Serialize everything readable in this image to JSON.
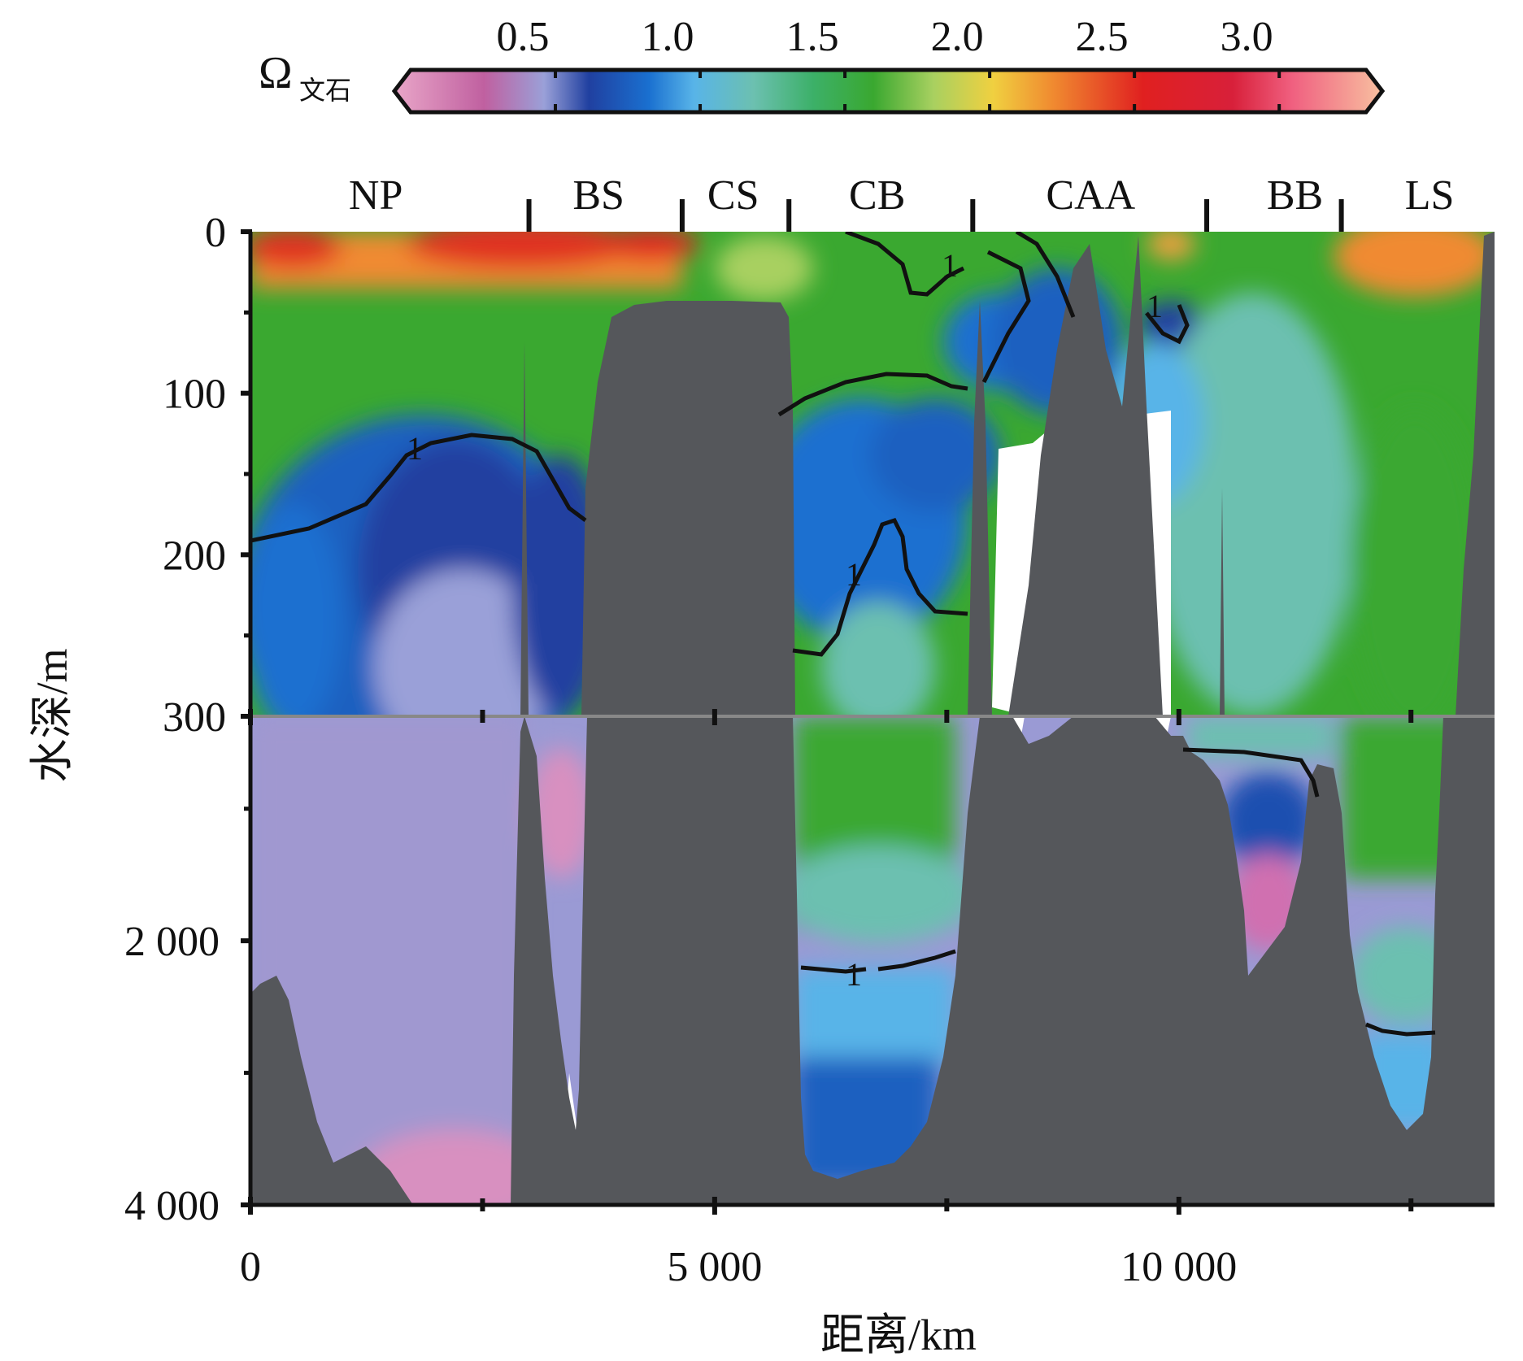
{
  "colorbar": {
    "label_main": "Ω",
    "label_sub": "文石",
    "ticks": [
      0.5,
      1.0,
      1.5,
      2.0,
      2.5,
      3.0
    ],
    "tick_labels": [
      "0.5",
      "1.0",
      "1.5",
      "2.0",
      "2.5",
      "3.0"
    ],
    "range": [
      0.0,
      3.3
    ],
    "stops": [
      {
        "v": 0.0,
        "color": "#e9a6c8"
      },
      {
        "v": 0.3,
        "color": "#c060a0"
      },
      {
        "v": 0.5,
        "color": "#9aa0d8"
      },
      {
        "v": 0.65,
        "color": "#2040a0"
      },
      {
        "v": 0.85,
        "color": "#1a70d0"
      },
      {
        "v": 1.0,
        "color": "#58b4e8"
      },
      {
        "v": 1.2,
        "color": "#6cc0b0"
      },
      {
        "v": 1.4,
        "color": "#3cb068"
      },
      {
        "v": 1.6,
        "color": "#3aa830"
      },
      {
        "v": 1.8,
        "color": "#a8d060"
      },
      {
        "v": 2.0,
        "color": "#f0d040"
      },
      {
        "v": 2.2,
        "color": "#f08a30"
      },
      {
        "v": 2.5,
        "color": "#e02020"
      },
      {
        "v": 2.8,
        "color": "#d8203a"
      },
      {
        "v": 3.0,
        "color": "#f06080"
      },
      {
        "v": 3.3,
        "color": "#f8c0a0"
      }
    ]
  },
  "chart_data": {
    "type": "heatmap",
    "xlabel": "距离/km",
    "ylabel": "水深/m",
    "xlim": [
      0,
      13400
    ],
    "x_ticks": [
      0,
      5000,
      10000
    ],
    "x_tick_labels": [
      "0",
      "5 000",
      "10 000"
    ],
    "y_ticks_upper": [
      0,
      100,
      200,
      300
    ],
    "y_tick_labels_upper": [
      "0",
      "100",
      "200",
      "300"
    ],
    "y_ticks_lower": [
      2000,
      4000
    ],
    "y_tick_labels_lower": [
      "2 000",
      "4 000"
    ],
    "ylim_upper": [
      0,
      300
    ],
    "ylim_lower": [
      300,
      4000
    ],
    "regions": [
      {
        "name": "NP",
        "center_km": 1350
      },
      {
        "name": "BS",
        "center_km": 3750
      },
      {
        "name": "CS",
        "center_km": 5200
      },
      {
        "name": "CB",
        "center_km": 6750
      },
      {
        "name": "CAA",
        "center_km": 9050
      },
      {
        "name": "BB",
        "center_km": 11250
      },
      {
        "name": "LS",
        "center_km": 12700
      }
    ],
    "region_boundaries_km": [
      3000,
      4650,
      5800,
      7780,
      10300,
      11750
    ],
    "contour_label": "1",
    "contour_level": 1.0,
    "colors": {
      "bathymetry": "#55575b",
      "contour": "#111111",
      "ice": "#ffffff"
    }
  }
}
